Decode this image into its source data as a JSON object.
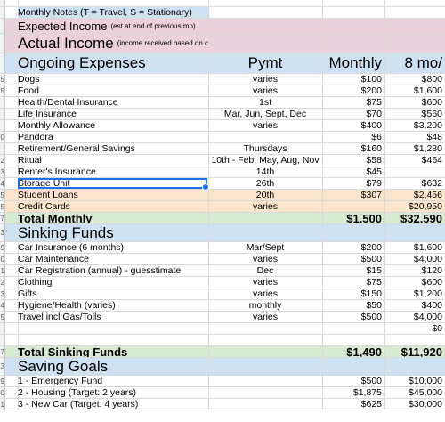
{
  "rows": [
    {
      "rn": "",
      "a": "",
      "b": "",
      "c": "",
      "d": "",
      "style": "top",
      "h": 8
    },
    {
      "rn": "",
      "a": "Monthly Notes  (T = Travel, S = Stationary)",
      "b": "",
      "c": "",
      "d": "",
      "style": "blue-a",
      "h": 13
    },
    {
      "rn": "",
      "a": "Expected Income",
      "note": "(est at end of previous mo)",
      "b": "",
      "c": "",
      "d": "",
      "style": "pink-mid",
      "h": 17
    },
    {
      "rn": "",
      "a": "Actual Income",
      "note": "(income received based on calendar mo)",
      "b": "",
      "c": "",
      "d": "",
      "style": "pink-big",
      "h": 22
    },
    {
      "rn": "",
      "a": "Ongoing Expenses",
      "b": "Pymt",
      "c": "Monthly",
      "d": "8 mo/",
      "style": "blue-big",
      "h": 23
    },
    {
      "rn": "5",
      "a": "Dogs",
      "b": "varies",
      "c": "$100",
      "d": "$800"
    },
    {
      "rn": "5",
      "a": "Food",
      "b": "varies",
      "c": "$200",
      "d": "$1,600"
    },
    {
      "rn": "",
      "a": "Health/Dental Insurance",
      "b": "1st",
      "c": "$75",
      "d": "$600"
    },
    {
      "rn": "",
      "a": "Life Insurance",
      "b": "Mar, Jun, Sept, Dec",
      "c": "$70",
      "d": "$560"
    },
    {
      "rn": "",
      "a": "Monthly Allowance",
      "b": "varies",
      "c": "$400",
      "d": "$3,200"
    },
    {
      "rn": "0",
      "a": "Pandora",
      "b": "",
      "c": "$6",
      "d": "$48"
    },
    {
      "rn": "",
      "a": "Retirement/General Savings",
      "b": "Thursdays",
      "c": "$160",
      "d": "$1,280"
    },
    {
      "rn": "2",
      "a": "Ritual",
      "b": "10th - Feb, May, Aug, Nov",
      "c": "$58",
      "d": "$464"
    },
    {
      "rn": "3",
      "a": "Renter's Insurance",
      "b": "14th",
      "c": "$45",
      "d": ""
    },
    {
      "rn": "4",
      "a": "Storage Unit",
      "b": "26th",
      "c": "$79",
      "d": "$632",
      "selected": true
    },
    {
      "rn": "5",
      "a": "Student Loans",
      "b": "20th",
      "c": "$307",
      "d": "$2,456",
      "style": "orange"
    },
    {
      "rn": "5",
      "a": "Credit Cards",
      "b": "varies",
      "c": "",
      "d": "$20,950",
      "style": "orange"
    },
    {
      "rn": "7",
      "a": "Total Monthly",
      "b": "",
      "c": "$1,500",
      "d": "$32,590",
      "style": "green-bold"
    },
    {
      "rn": "3",
      "a": "Sinking Funds",
      "b": "",
      "c": "",
      "d": "",
      "style": "blue-big",
      "h": 20
    },
    {
      "rn": "9",
      "a": "Car Insurance (6 months)",
      "b": "Mar/Sept",
      "c": "$200",
      "d": "$1,600"
    },
    {
      "rn": "0",
      "a": "Car Maintenance",
      "b": "varies",
      "c": "$500",
      "d": "$4,000"
    },
    {
      "rn": "1",
      "a": "Car Registration (annual) - guesstimate",
      "b": "Dec",
      "c": "$15",
      "d": "$120"
    },
    {
      "rn": "2",
      "a": "Clothing",
      "b": "varies",
      "c": "$75",
      "d": "$600"
    },
    {
      "rn": "3",
      "a": "Gifts",
      "b": "varies",
      "c": "$150",
      "d": "$1,200"
    },
    {
      "rn": "4",
      "a": "Hygiene/Health (varies)",
      "b": "monthly",
      "c": "$50",
      "d": "$400"
    },
    {
      "rn": "5",
      "a": "Travel incl Gas/Tolls",
      "b": "varies",
      "c": "$500",
      "d": "$4,000"
    },
    {
      "rn": "",
      "a": "",
      "b": "",
      "c": "",
      "d": "$0"
    },
    {
      "rn": "",
      "a": "",
      "b": "",
      "c": "",
      "d": ""
    },
    {
      "rn": "7",
      "a": "Total Sinking Funds",
      "b": "",
      "c": "$1,490",
      "d": "$11,920",
      "style": "green-bold"
    },
    {
      "rn": "3",
      "a": "Saving Goals",
      "b": "",
      "c": "",
      "d": "",
      "style": "blue-big",
      "h": 20
    },
    {
      "rn": "9",
      "a": "1 - Emergency Fund",
      "b": "",
      "c": "$500",
      "d": "$10,000"
    },
    {
      "rn": "0",
      "a": "2 - Housing (Target: 2 years)",
      "b": "",
      "c": "$1,875",
      "d": "$45,000"
    },
    {
      "rn": "1",
      "a": "3 - New Car (Target: 4 years)",
      "b": "",
      "c": "$625",
      "d": "$30,000"
    }
  ]
}
